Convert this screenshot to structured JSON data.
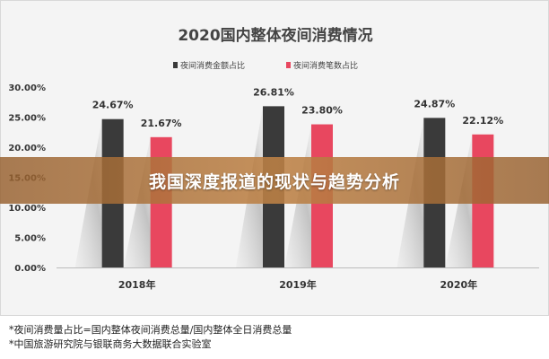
{
  "chart_data": {
    "type": "bar",
    "title": "2020国内整体夜间消费情况",
    "categories": [
      "2018年",
      "2019年",
      "2020年"
    ],
    "series": [
      {
        "name": "夜间消费金额占比",
        "values": [
          24.67,
          26.81,
          24.87
        ],
        "labels": [
          "24.67%",
          "26.81%",
          "24.87%"
        ],
        "color": "#3a3a3a"
      },
      {
        "name": "夜间消费笔数占比",
        "values": [
          21.67,
          23.8,
          22.12
        ],
        "labels": [
          "21.67%",
          "23.80%",
          "22.12%"
        ],
        "color": "#e8475f"
      }
    ],
    "yticks": [
      "0.00%",
      "5.00%",
      "10.00%",
      "15.00%",
      "20.00%",
      "25.00%",
      "30.00%"
    ],
    "ylim": [
      0,
      30
    ],
    "legend": "top-center",
    "grid": false
  },
  "banner": {
    "text": "我国深度报道的现状与趋势分析"
  },
  "notes": [
    "*夜间消费量占比=国内整体夜间消费总量/国内整体全日消费总量",
    "*中国旅游研究院与银联商务大数据联合实验室"
  ]
}
